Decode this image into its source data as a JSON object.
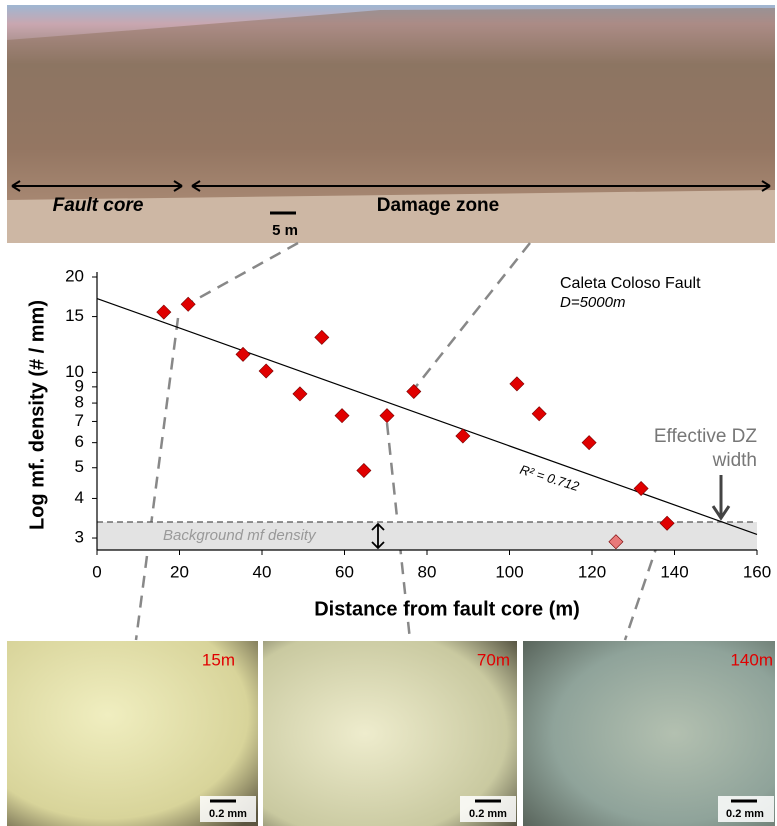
{
  "photo": {
    "fault_core": "Fault core",
    "damage_zone": "Damage zone",
    "scale": "5 m"
  },
  "thin_sections": [
    {
      "label": "15m",
      "scale": "0.2 mm"
    },
    {
      "label": "70m",
      "scale": "0.2 mm"
    },
    {
      "label": "140m",
      "scale": "0.2 mm"
    }
  ],
  "chart_data": {
    "type": "scatter",
    "title": "Caleta Coloso Fault",
    "subtitle": "D=5000m",
    "x_label": "Distance from fault core (m)",
    "y_label": "Log mf. density (# / mm)",
    "log_y": true,
    "xlim": [
      0,
      160
    ],
    "xticks": [
      0,
      20,
      40,
      60,
      80,
      100,
      120,
      140,
      160
    ],
    "ylim": [
      2.75,
      20
    ],
    "yticks": [
      3,
      4,
      5,
      6,
      7,
      8,
      9,
      10,
      15,
      20
    ],
    "series": [
      {
        "color": "#e00000",
        "colors": [
          "#e00000",
          "#e00000",
          "#e00000",
          "#e00000",
          "#e00000",
          "#e00000",
          "#e00000",
          "#e00000",
          "#e00000",
          "#e00000",
          "#e00000",
          "#e00000",
          "#e00000",
          "#e00000",
          "#e00000",
          "#e00000",
          "#e87a7a"
        ],
        "x": [
          16.2,
          22.1,
          35.4,
          41,
          49.2,
          54.5,
          59.4,
          64.7,
          70.3,
          76.8,
          88.7,
          101.8,
          107.2,
          119.3,
          131.9,
          138.2,
          125.8
        ],
        "values": [
          15.5,
          16.4,
          11.4,
          10.1,
          8.55,
          12.9,
          7.3,
          4.9,
          7.3,
          8.7,
          6.3,
          9.2,
          7.4,
          6.0,
          4.3,
          3.34,
          2.92
        ]
      }
    ],
    "trendline": {
      "x": [
        0,
        160
      ],
      "values": [
        17.1,
        3.08
      ],
      "label": "R² = 0.712"
    },
    "background": {
      "value": 3.37,
      "label": "Background mf density"
    },
    "annotation": {
      "x": 152,
      "lines": [
        "Effective DZ",
        "width"
      ]
    }
  }
}
